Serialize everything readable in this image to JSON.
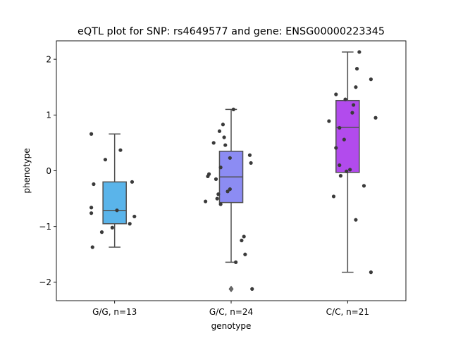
{
  "chart_data": {
    "type": "box",
    "title": "eQTL plot for SNP: rs4649577 and gene: ENSG00000223345",
    "xlabel": "genotype",
    "ylabel": "phenotype",
    "ylim": [
      -2.33,
      2.33
    ],
    "yticks": [
      -2,
      -1,
      0,
      1,
      2
    ],
    "ytick_labels": [
      "−2",
      "−1",
      "0",
      "1",
      "2"
    ],
    "grid": false,
    "categories": [
      "G/G, n=13",
      "G/C, n=24",
      "C/C, n=21"
    ],
    "boxes": [
      {
        "category": "G/G, n=13",
        "color": "#5ab4ea",
        "q1": -0.95,
        "median": -0.71,
        "q3": -0.2,
        "whisker_low": -1.37,
        "whisker_high": 0.66,
        "outliers": []
      },
      {
        "category": "G/C, n=24",
        "color": "#8c8cf3",
        "q1": -0.57,
        "median": -0.11,
        "q3": 0.35,
        "whisker_low": -1.64,
        "whisker_high": 1.1,
        "outliers": [
          -2.12
        ]
      },
      {
        "category": "C/C, n=21",
        "color": "#b24bed",
        "q1": -0.03,
        "median": 0.78,
        "q3": 1.26,
        "whisker_low": -1.82,
        "whisker_high": 2.13,
        "outliers": []
      }
    ],
    "points": [
      [
        {
          "j": -0.2,
          "y": 0.66
        },
        {
          "j": 0.05,
          "y": 0.37
        },
        {
          "j": -0.08,
          "y": 0.2
        },
        {
          "j": 0.15,
          "y": -0.2
        },
        {
          "j": -0.18,
          "y": -0.24
        },
        {
          "j": -0.2,
          "y": -0.66
        },
        {
          "j": 0.02,
          "y": -0.71
        },
        {
          "j": -0.2,
          "y": -0.76
        },
        {
          "j": 0.17,
          "y": -0.82
        },
        {
          "j": 0.13,
          "y": -0.95
        },
        {
          "j": -0.02,
          "y": -1.02
        },
        {
          "j": -0.11,
          "y": -1.1
        },
        {
          "j": -0.19,
          "y": -1.37
        }
      ],
      [
        {
          "j": 0.02,
          "y": 1.1
        },
        {
          "j": -0.07,
          "y": 0.83
        },
        {
          "j": -0.1,
          "y": 0.71
        },
        {
          "j": -0.06,
          "y": 0.6
        },
        {
          "j": -0.15,
          "y": 0.5
        },
        {
          "j": -0.05,
          "y": 0.46
        },
        {
          "j": 0.16,
          "y": 0.28
        },
        {
          "j": -0.01,
          "y": 0.23
        },
        {
          "j": 0.17,
          "y": 0.14
        },
        {
          "j": -0.09,
          "y": 0.06
        },
        {
          "j": -0.19,
          "y": -0.06
        },
        {
          "j": -0.2,
          "y": -0.1
        },
        {
          "j": -0.13,
          "y": -0.15
        },
        {
          "j": -0.01,
          "y": -0.33
        },
        {
          "j": -0.03,
          "y": -0.37
        },
        {
          "j": -0.11,
          "y": -0.42
        },
        {
          "j": -0.12,
          "y": -0.5
        },
        {
          "j": -0.22,
          "y": -0.55
        },
        {
          "j": -0.09,
          "y": -0.6
        },
        {
          "j": 0.11,
          "y": -1.18
        },
        {
          "j": 0.09,
          "y": -1.25
        },
        {
          "j": 0.12,
          "y": -1.5
        },
        {
          "j": 0.04,
          "y": -1.64
        },
        {
          "j": 0.18,
          "y": -2.12
        }
      ],
      [
        {
          "j": 0.1,
          "y": 2.13
        },
        {
          "j": 0.08,
          "y": 1.83
        },
        {
          "j": 0.2,
          "y": 1.64
        },
        {
          "j": 0.07,
          "y": 1.5
        },
        {
          "j": -0.1,
          "y": 1.37
        },
        {
          "j": -0.02,
          "y": 1.28
        },
        {
          "j": 0.05,
          "y": 1.18
        },
        {
          "j": 0.04,
          "y": 1.04
        },
        {
          "j": 0.24,
          "y": 0.95
        },
        {
          "j": -0.16,
          "y": 0.89
        },
        {
          "j": -0.07,
          "y": 0.77
        },
        {
          "j": -0.03,
          "y": 0.56
        },
        {
          "j": -0.1,
          "y": 0.41
        },
        {
          "j": -0.07,
          "y": 0.1
        },
        {
          "j": 0.02,
          "y": 0.02
        },
        {
          "j": -0.01,
          "y": -0.01
        },
        {
          "j": -0.06,
          "y": -0.09
        },
        {
          "j": 0.14,
          "y": -0.27
        },
        {
          "j": -0.12,
          "y": -0.46
        },
        {
          "j": 0.07,
          "y": -0.88
        },
        {
          "j": 0.2,
          "y": -1.82
        }
      ]
    ],
    "colors": {
      "box_edge": "#505050",
      "point": "#3a3a3a",
      "frame": "#000000"
    }
  }
}
